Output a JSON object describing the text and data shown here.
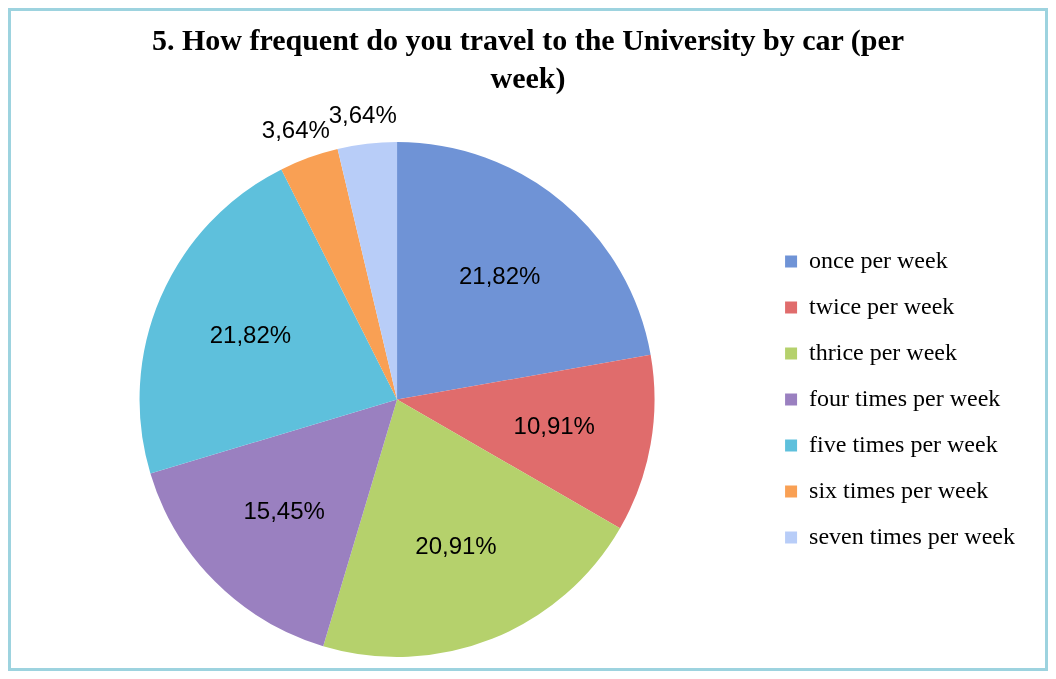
{
  "chart_data": {
    "type": "pie",
    "title": "5. How frequent do you travel to the University by car (per week)",
    "categories": [
      "once per week",
      "twice per week",
      "thrice per week",
      "four times per week",
      "five times per week",
      "six times per week",
      "seven times per week"
    ],
    "values": [
      21.82,
      10.91,
      20.91,
      15.45,
      21.82,
      3.64,
      3.64
    ],
    "value_labels": [
      "21,82%",
      "10,91%",
      "20,91%",
      "15,45%",
      "21,82%",
      "3,64%",
      "3,64%"
    ],
    "colors": [
      "#6f93d6",
      "#e06c6c",
      "#b5d16c",
      "#9a80c0",
      "#5ec0dc",
      "#f9a054",
      "#b8cdf8"
    ],
    "legend": "right"
  }
}
